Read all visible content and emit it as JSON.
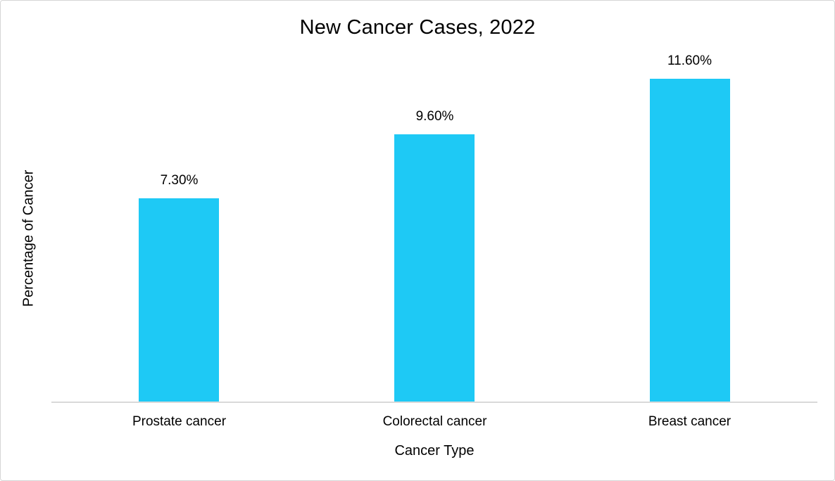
{
  "chart_data": {
    "type": "bar",
    "title": "New Cancer Cases, 2022",
    "xlabel": "Cancer Type",
    "ylabel": "Percentage of Cancer",
    "categories": [
      "Prostate cancer",
      "Colorectal cancer",
      "Breast cancer"
    ],
    "values": [
      7.3,
      9.6,
      11.6
    ],
    "data_labels": [
      "7.30%",
      "9.60%",
      "11.60%"
    ],
    "ylim": [
      0,
      12
    ],
    "grid": false,
    "legend": "none",
    "bar_color": "#1ec9f5",
    "axis_line_color": "#d9d9d9",
    "text_color": "#000000"
  }
}
